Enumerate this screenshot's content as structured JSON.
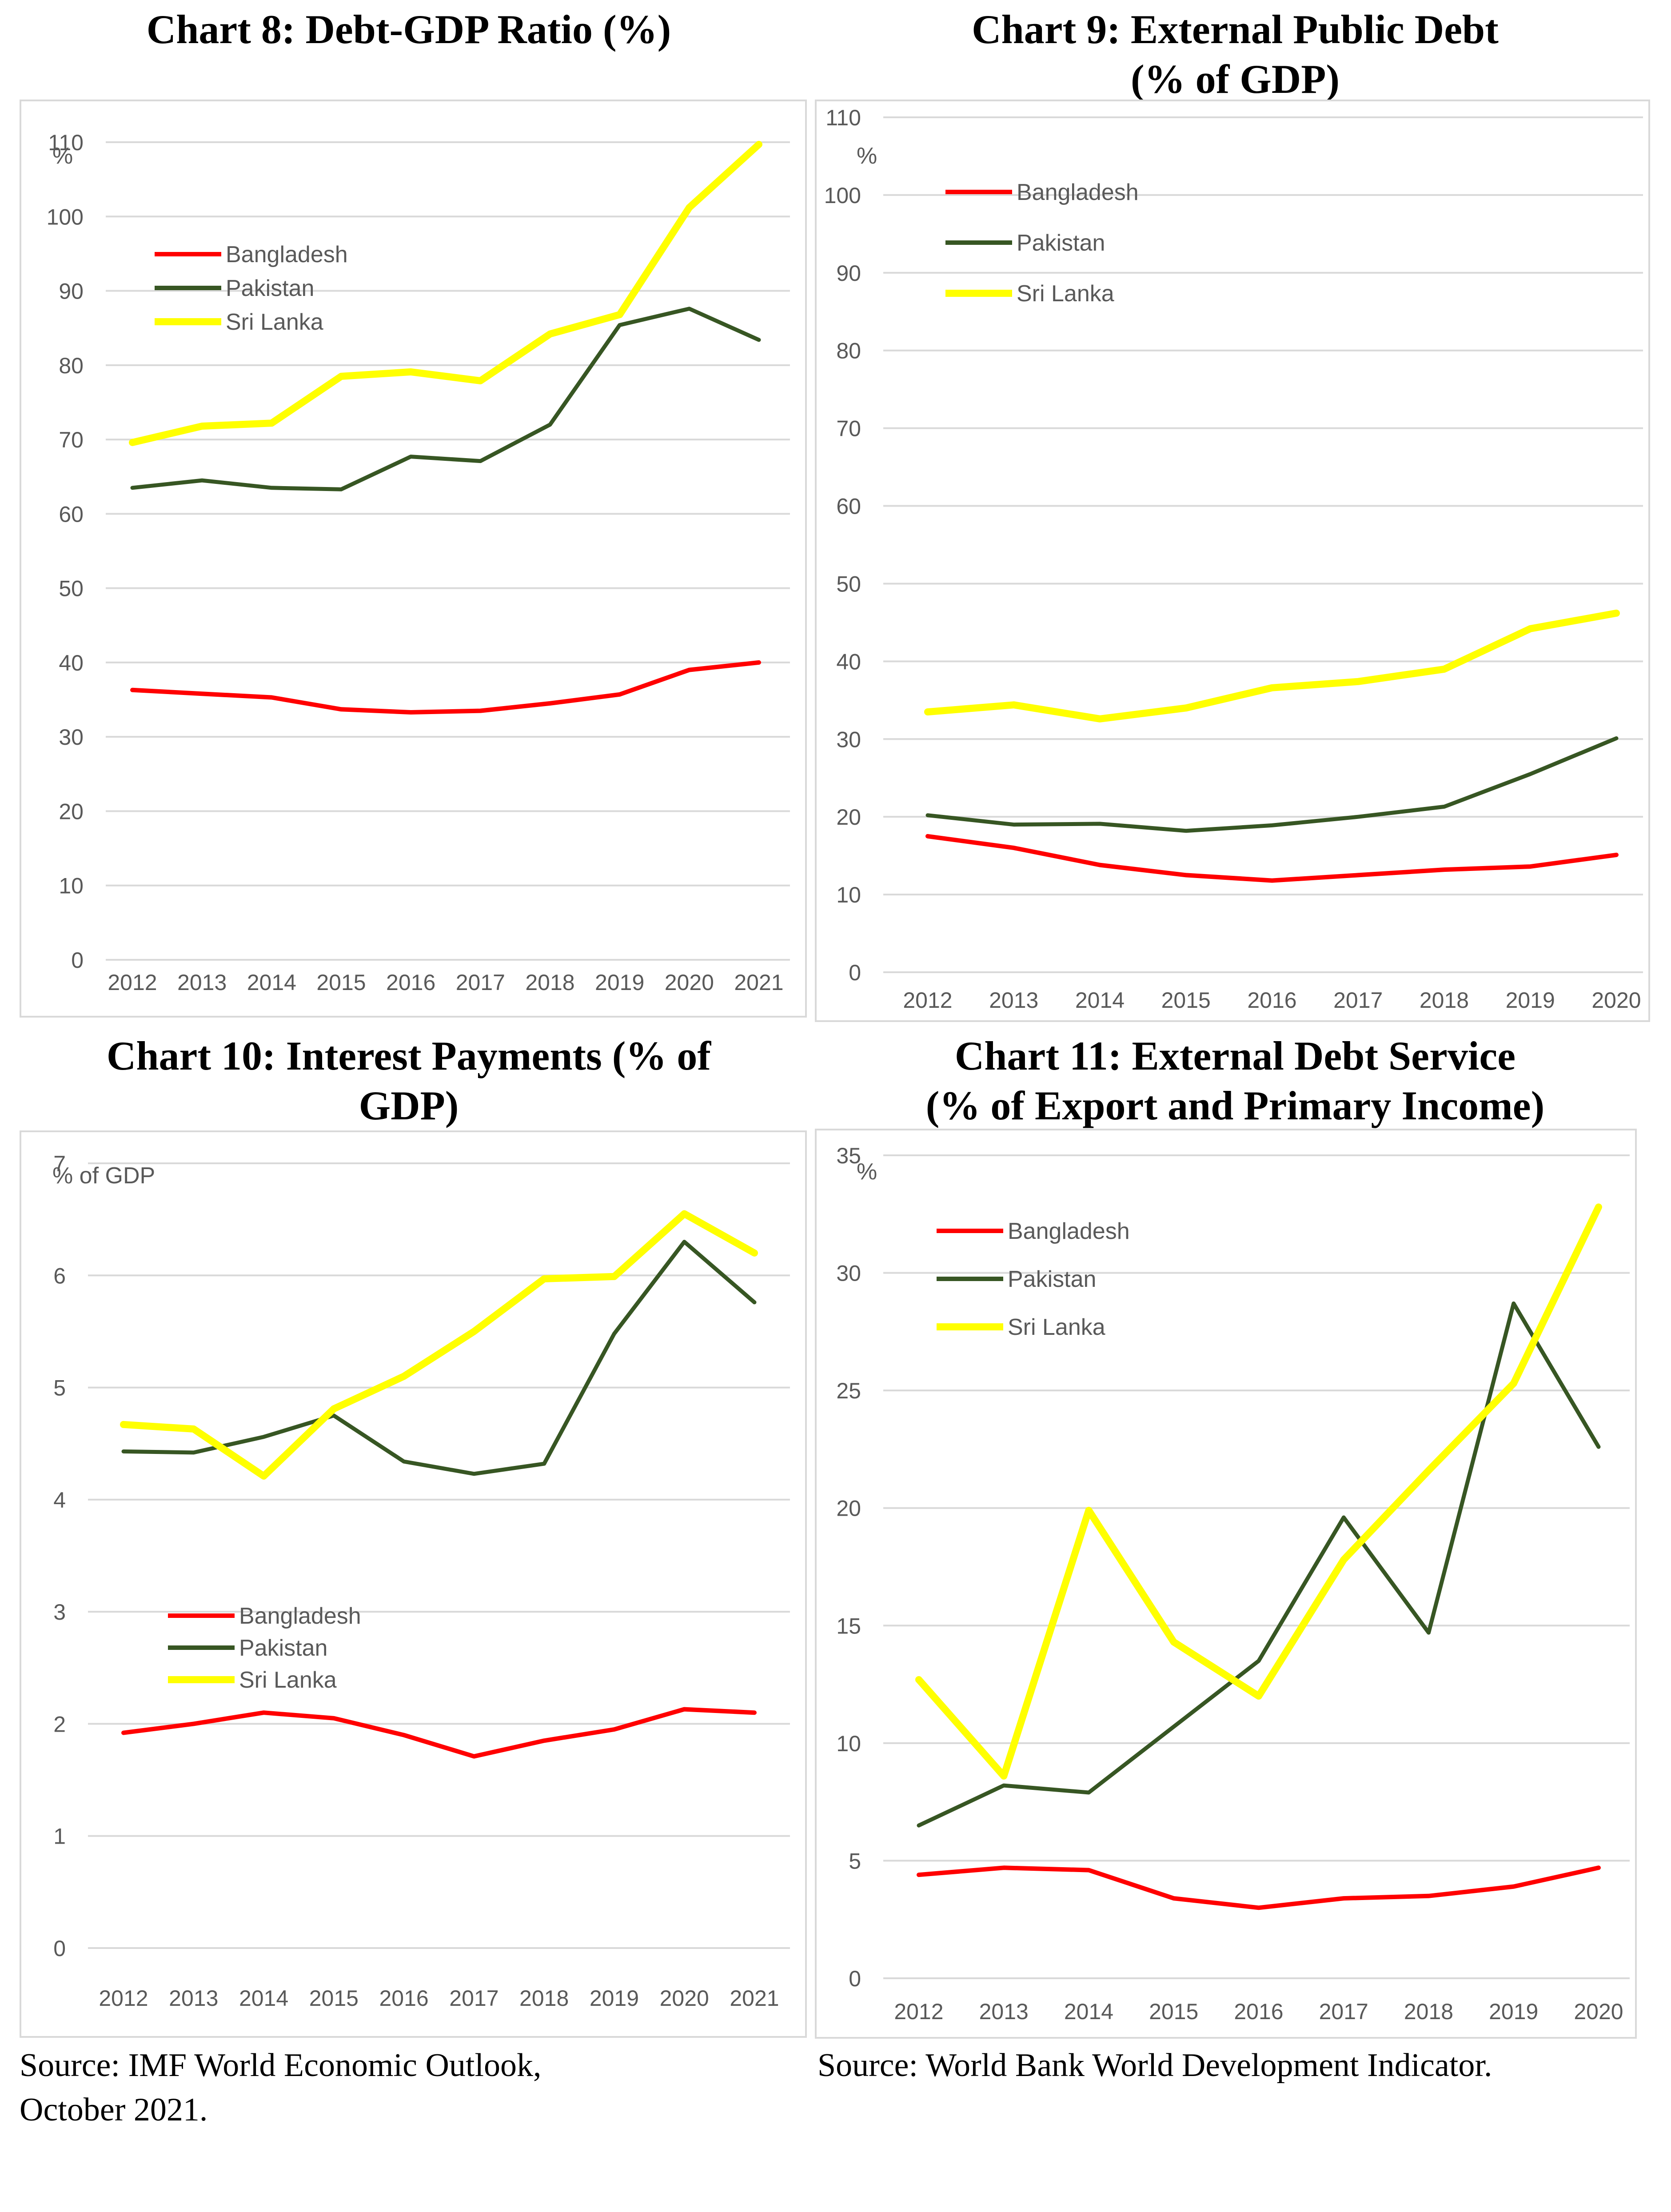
{
  "colors": {
    "Bangladesh": "#ff0000",
    "Pakistan": "#375623",
    "Sri Lanka": "#ffff00",
    "grid": "#d9d9d9",
    "text": "#595959"
  },
  "sources": {
    "left_line1": "Source: IMF World Economic Outlook,",
    "left_line2": "October 2021.",
    "right": "Source: World Bank World Development Indicator."
  },
  "chart_data": [
    {
      "type": "line",
      "title": "Chart 8: Debt-GDP Ratio (%)",
      "title_lines": [
        "Chart 8: Debt-GDP Ratio (%)"
      ],
      "unit_label": "%",
      "categories": [
        "2012",
        "2013",
        "2014",
        "2015",
        "2016",
        "2017",
        "2018",
        "2019",
        "2020",
        "2021"
      ],
      "ylim": [
        0,
        110
      ],
      "yticks": [
        0,
        10,
        20,
        30,
        40,
        50,
        60,
        70,
        80,
        90,
        100,
        110
      ],
      "grid": true,
      "legend": [
        "Bangladesh",
        "Pakistan",
        "Sri Lanka"
      ],
      "series": [
        {
          "name": "Bangladesh",
          "values": [
            36.3,
            35.8,
            35.3,
            33.7,
            33.3,
            33.5,
            34.5,
            35.7,
            39.0,
            40.0
          ]
        },
        {
          "name": "Pakistan",
          "values": [
            63.5,
            64.5,
            63.5,
            63.3,
            67.7,
            67.1,
            72.0,
            85.4,
            87.6,
            83.4
          ]
        },
        {
          "name": "Sri Lanka",
          "values": [
            69.6,
            71.8,
            72.2,
            78.5,
            79.1,
            77.9,
            84.2,
            86.8,
            101.2,
            109.7
          ]
        }
      ]
    },
    {
      "type": "line",
      "title": "Chart 9: External Public Debt (% of GDP)",
      "title_lines": [
        "Chart 9: External Public Debt",
        "(% of GDP)"
      ],
      "unit_label": "%",
      "categories": [
        "2012",
        "2013",
        "2014",
        "2015",
        "2016",
        "2017",
        "2018",
        "2019",
        "2020"
      ],
      "ylim": [
        0,
        110
      ],
      "yticks": [
        0,
        10,
        20,
        30,
        40,
        50,
        60,
        70,
        80,
        90,
        100,
        110
      ],
      "grid": true,
      "legend": [
        "Bangladesh",
        "Pakistan",
        "Sri Lanka"
      ],
      "series": [
        {
          "name": "Bangladesh",
          "values": [
            17.5,
            16.0,
            13.8,
            12.5,
            11.8,
            12.5,
            13.2,
            13.6,
            15.1
          ]
        },
        {
          "name": "Pakistan",
          "values": [
            20.2,
            19.0,
            19.1,
            18.2,
            18.9,
            20.0,
            21.3,
            25.5,
            30.1
          ]
        },
        {
          "name": "Sri Lanka",
          "values": [
            33.5,
            34.4,
            32.6,
            34.0,
            36.6,
            37.4,
            39.0,
            44.2,
            46.2
          ]
        }
      ]
    },
    {
      "type": "line",
      "title": "Chart 10: Interest Payments (% of GDP)",
      "title_lines": [
        "Chart 10: Interest Payments (% of",
        "GDP)"
      ],
      "unit_label": "% of GDP",
      "categories": [
        "2012",
        "2013",
        "2014",
        "2015",
        "2016",
        "2017",
        "2018",
        "2019",
        "2020",
        "2021"
      ],
      "ylim": [
        0,
        7
      ],
      "yticks": [
        0,
        1,
        2,
        3,
        4,
        5,
        6,
        7
      ],
      "grid": true,
      "legend": [
        "Bangladesh",
        "Pakistan",
        "Sri Lanka"
      ],
      "series": [
        {
          "name": "Bangladesh",
          "values": [
            1.92,
            2.0,
            2.1,
            2.05,
            1.9,
            1.71,
            1.85,
            1.95,
            2.13,
            2.1
          ]
        },
        {
          "name": "Pakistan",
          "values": [
            4.43,
            4.42,
            4.56,
            4.75,
            4.34,
            4.23,
            4.32,
            5.48,
            6.3,
            5.76
          ]
        },
        {
          "name": "Sri Lanka",
          "values": [
            4.67,
            4.63,
            4.21,
            4.81,
            5.1,
            5.5,
            5.97,
            5.99,
            6.55,
            6.2
          ]
        }
      ]
    },
    {
      "type": "line",
      "title": "Chart 11: External Debt Service (% of Export and Primary Income)",
      "title_lines": [
        "Chart 11: External Debt Service",
        "(% of Export and Primary Income)"
      ],
      "unit_label": "%",
      "categories": [
        "2012",
        "2013",
        "2014",
        "2015",
        "2016",
        "2017",
        "2018",
        "2019",
        "2020"
      ],
      "ylim": [
        0,
        35
      ],
      "yticks": [
        0,
        5,
        10,
        15,
        20,
        25,
        30,
        35
      ],
      "grid": true,
      "legend": [
        "Bangladesh",
        "Pakistan",
        "Sri Lanka"
      ],
      "series": [
        {
          "name": "Bangladesh",
          "values": [
            4.4,
            4.7,
            4.6,
            3.4,
            3.0,
            3.4,
            3.5,
            3.9,
            4.7
          ]
        },
        {
          "name": "Pakistan",
          "values": [
            6.5,
            8.2,
            7.9,
            10.7,
            13.5,
            19.6,
            14.7,
            28.7,
            22.6
          ]
        },
        {
          "name": "Sri Lanka",
          "values": [
            12.7,
            8.6,
            19.9,
            14.3,
            12.0,
            17.8,
            21.6,
            25.3,
            32.8
          ]
        }
      ]
    }
  ]
}
